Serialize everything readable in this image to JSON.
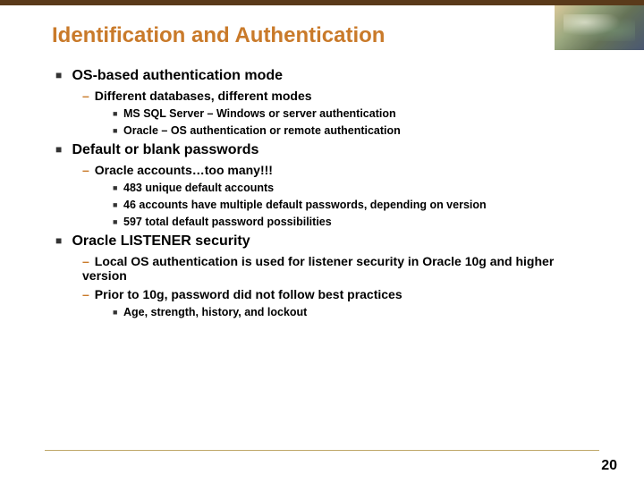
{
  "title": "Identification and Authentication",
  "pageNumber": "20",
  "colors": {
    "topBar": "#5a3a1a",
    "titleColor": "#c97a2a",
    "dashColor": "#c97a2a",
    "footerLine": "#bfa86a"
  },
  "sections": [
    {
      "heading": "OS-based authentication mode",
      "subs": [
        {
          "text": "Different databases, different modes",
          "items": [
            "MS SQL Server – Windows or server authentication",
            "Oracle – OS authentication or remote authentication"
          ]
        }
      ]
    },
    {
      "heading": "Default or blank passwords",
      "subs": [
        {
          "text": "Oracle accounts…too many!!!",
          "items": [
            "483 unique default accounts",
            "46 accounts have multiple default passwords, depending on version",
            "597 total default password possibilities"
          ]
        }
      ]
    },
    {
      "heading": "Oracle LISTENER security",
      "subs": [
        {
          "text": "Local OS authentication is used for listener security in Oracle 10g and higher version",
          "items": []
        },
        {
          "text": "Prior to 10g, password did not follow best practices",
          "items": [
            "Age, strength, history, and lockout"
          ]
        }
      ]
    }
  ]
}
